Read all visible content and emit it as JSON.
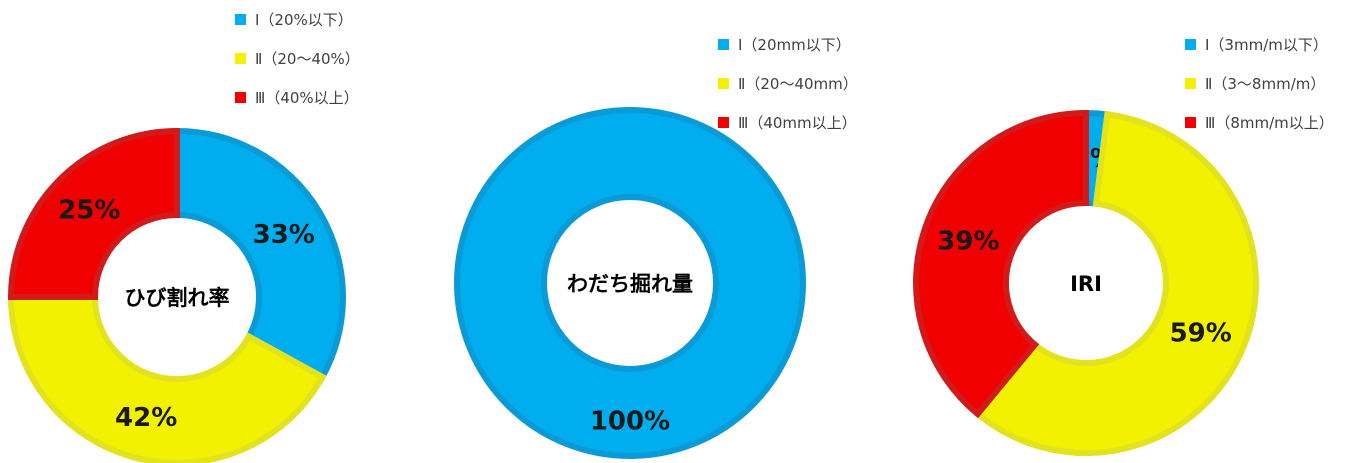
{
  "colors": {
    "blue": "#00AEEF",
    "blue_edge": "#0A9BD6",
    "yellow": "#F2F200",
    "yellow_edge": "#E2E21E",
    "red": "#F00000",
    "red_edge": "#D21A1A"
  },
  "chart_data": [
    {
      "type": "pie",
      "title": "ひび割れ率",
      "unit": "%",
      "series": [
        {
          "name": "Ⅰ（20%以下）",
          "value": 33,
          "label": "33%"
        },
        {
          "name": "Ⅱ（20～40%）",
          "value": 42,
          "label": "42%"
        },
        {
          "name": "Ⅲ（40%以上）",
          "value": 25,
          "label": "25%"
        }
      ],
      "legend": "top-right"
    },
    {
      "type": "pie",
      "title": "わだち掘れ量",
      "unit": "%",
      "series": [
        {
          "name": "Ⅰ（20mm以下）",
          "value": 100,
          "label": "100%"
        },
        {
          "name": "Ⅱ（20～40mm）",
          "value": 0,
          "label": ""
        },
        {
          "name": "Ⅲ（40mm以上）",
          "value": 0,
          "label": ""
        }
      ],
      "legend": "top-right"
    },
    {
      "type": "pie",
      "title": "IRI",
      "unit": "%",
      "series": [
        {
          "name": "Ⅰ（3mm/m以下）",
          "value": 2,
          "label": "2%"
        },
        {
          "name": "Ⅱ（3～8mm/m）",
          "value": 59,
          "label": "59%"
        },
        {
          "name": "Ⅲ（8mm/m以上）",
          "value": 39,
          "label": "39%"
        }
      ],
      "legend": "top-right"
    }
  ]
}
